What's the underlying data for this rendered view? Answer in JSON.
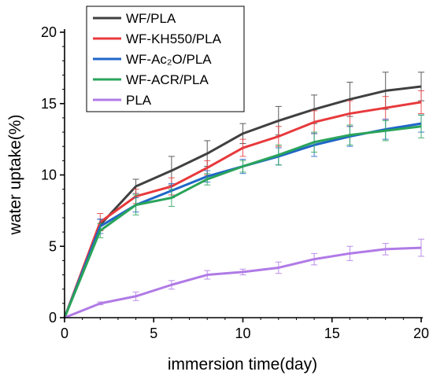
{
  "chart_data": {
    "type": "line",
    "xlabel": "immersion time(day)",
    "ylabel": "water uptake(%)",
    "xlim": [
      0,
      20
    ],
    "ylim": [
      0,
      20
    ],
    "xticks": [
      "0",
      "5",
      "10",
      "15",
      "20"
    ],
    "yticks": [
      "0",
      "5",
      "10",
      "15",
      "20"
    ],
    "grid": false,
    "legend": "top-left",
    "x": [
      0,
      2,
      4,
      6,
      8,
      10,
      12,
      14,
      16,
      18,
      20
    ],
    "series": [
      {
        "name": "WF/PLA",
        "color": "#404040",
        "values": [
          0,
          6.5,
          9.2,
          10.3,
          11.5,
          12.9,
          13.8,
          14.6,
          15.3,
          15.9,
          16.2
        ],
        "errors": [
          0,
          0.4,
          0.5,
          1.0,
          0.9,
          0.7,
          1.0,
          1.0,
          1.2,
          1.3,
          1.0
        ]
      },
      {
        "name": "WF-KH550/PLA",
        "color": "#e8393c",
        "values": [
          0,
          6.7,
          8.5,
          9.2,
          10.5,
          11.9,
          12.7,
          13.7,
          14.3,
          14.7,
          15.1
        ],
        "errors": [
          0,
          0.6,
          0.5,
          0.6,
          0.5,
          0.6,
          0.7,
          0.8,
          0.9,
          0.8,
          0.8
        ]
      },
      {
        "name": "WF-Ac₂O/PLA",
        "color": "#1f66c8",
        "values": [
          0,
          6.4,
          7.9,
          8.9,
          9.9,
          10.6,
          11.3,
          12.1,
          12.7,
          13.2,
          13.6
        ],
        "errors": [
          0,
          0.5,
          0.5,
          0.5,
          0.4,
          0.5,
          0.6,
          0.8,
          0.7,
          0.7,
          0.6
        ]
      },
      {
        "name": "WF-ACR/PLA",
        "color": "#2aa45a",
        "values": [
          0,
          6.1,
          7.9,
          8.4,
          9.7,
          10.6,
          11.4,
          12.3,
          12.8,
          13.1,
          13.4
        ],
        "errors": [
          0,
          0.5,
          0.7,
          0.6,
          0.4,
          0.4,
          0.7,
          0.7,
          0.7,
          0.7,
          0.8
        ]
      },
      {
        "name": "PLA",
        "color": "#b07ae6",
        "values": [
          0,
          1.0,
          1.5,
          2.3,
          3.0,
          3.2,
          3.5,
          4.1,
          4.5,
          4.8,
          4.9
        ],
        "errors": [
          0,
          0.1,
          0.3,
          0.3,
          0.3,
          0.2,
          0.4,
          0.4,
          0.5,
          0.4,
          0.6
        ]
      }
    ]
  }
}
